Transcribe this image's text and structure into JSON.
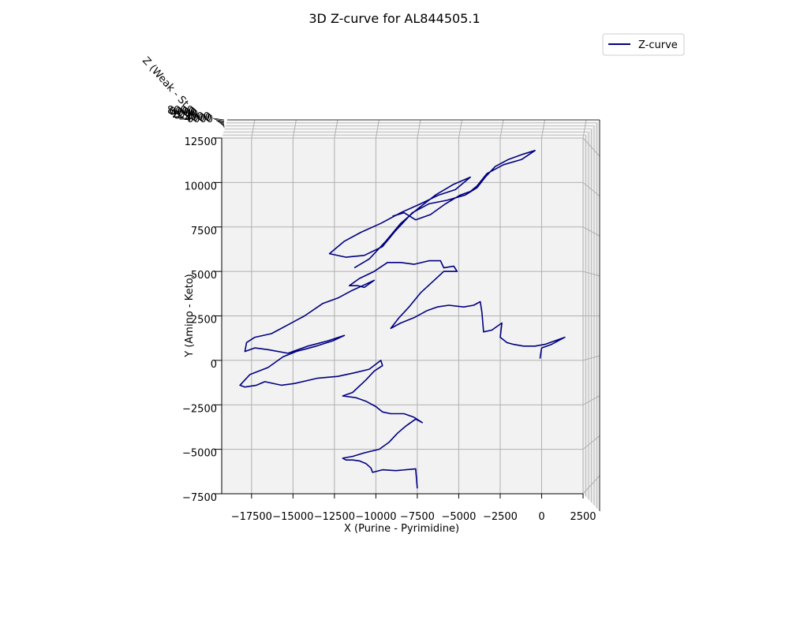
{
  "chart_data": {
    "type": "line",
    "title": "3D Z-curve for AL844505.1",
    "xlabel": "X (Purine - Pyrimidine)",
    "ylabel": "Y (Amino - Keto)",
    "zlabel": "Z (Weak - Strong)",
    "zlabel_visible": "Z (Weak - St",
    "xlim": [
      -19300,
      2500
    ],
    "ylim": [
      -7500,
      12500
    ],
    "x_ticks": [
      "−17500",
      "−15000",
      "−12500",
      "−10000",
      "−7500",
      "−5000",
      "−2500",
      "0",
      "2500"
    ],
    "x_tick_values": [
      -17500,
      -15000,
      -12500,
      -10000,
      -7500,
      -5000,
      -2500,
      0,
      2500
    ],
    "y_ticks": [
      "−7500",
      "−5000",
      "−2500",
      "0",
      "2500",
      "5000",
      "7500",
      "10000",
      "12500"
    ],
    "y_tick_values": [
      -7500,
      -5000,
      -2500,
      0,
      2500,
      5000,
      7500,
      10000,
      12500
    ],
    "z_ticks_overlapping": [
      "8000",
      "6000",
      "4000",
      "2000",
      "0",
      "−2000",
      "−4000",
      "−6000"
    ],
    "grid": true,
    "legend_position": "top-right",
    "line_color": "#000080",
    "pane_color": "#f2f2f2",
    "grid_color": "#b0b0b0",
    "series": [
      {
        "name": "Z-curve",
        "points": [
          [
            -7500,
            -7200
          ],
          [
            -7600,
            -6100
          ],
          [
            -8800,
            -6200
          ],
          [
            -9600,
            -6150
          ],
          [
            -10200,
            -6300
          ],
          [
            -10300,
            -6050
          ],
          [
            -10600,
            -5800
          ],
          [
            -11000,
            -5650
          ],
          [
            -11400,
            -5600
          ],
          [
            -11800,
            -5600
          ],
          [
            -12000,
            -5500
          ],
          [
            -11400,
            -5400
          ],
          [
            -10700,
            -5200
          ],
          [
            -9800,
            -5000
          ],
          [
            -9200,
            -4600
          ],
          [
            -8700,
            -4100
          ],
          [
            -8200,
            -3700
          ],
          [
            -7600,
            -3300
          ],
          [
            -7200,
            -3500
          ],
          [
            -7700,
            -3200
          ],
          [
            -8300,
            -3000
          ],
          [
            -9100,
            -3000
          ],
          [
            -9600,
            -2900
          ],
          [
            -10000,
            -2600
          ],
          [
            -10600,
            -2300
          ],
          [
            -11200,
            -2100
          ],
          [
            -12000,
            -2000
          ],
          [
            -11400,
            -1800
          ],
          [
            -10600,
            -1100
          ],
          [
            -10100,
            -600
          ],
          [
            -9600,
            -300
          ],
          [
            -9700,
            0
          ],
          [
            -10400,
            -500
          ],
          [
            -11300,
            -700
          ],
          [
            -12300,
            -900
          ],
          [
            -13500,
            -1000
          ],
          [
            -14900,
            -1300
          ],
          [
            -15700,
            -1400
          ],
          [
            -16700,
            -1200
          ],
          [
            -17200,
            -1400
          ],
          [
            -17900,
            -1500
          ],
          [
            -18200,
            -1400
          ],
          [
            -17600,
            -800
          ],
          [
            -16500,
            -400
          ],
          [
            -15600,
            200
          ],
          [
            -14800,
            500
          ],
          [
            -13600,
            800
          ],
          [
            -12600,
            1100
          ],
          [
            -11900,
            1400
          ],
          [
            -12900,
            1100
          ],
          [
            -14100,
            800
          ],
          [
            -15300,
            400
          ],
          [
            -16500,
            600
          ],
          [
            -17300,
            700
          ],
          [
            -17900,
            500
          ],
          [
            -17800,
            1000
          ],
          [
            -17300,
            1300
          ],
          [
            -16300,
            1500
          ],
          [
            -15300,
            2000
          ],
          [
            -14300,
            2500
          ],
          [
            -13200,
            3200
          ],
          [
            -12300,
            3500
          ],
          [
            -11500,
            3900
          ],
          [
            -10800,
            4200
          ],
          [
            -10100,
            4500
          ],
          [
            -10700,
            4100
          ],
          [
            -11100,
            4200
          ],
          [
            -11600,
            4200
          ],
          [
            -11000,
            4600
          ],
          [
            -10100,
            5000
          ],
          [
            -9300,
            5500
          ],
          [
            -8500,
            5500
          ],
          [
            -7700,
            5400
          ],
          [
            -6800,
            5600
          ],
          [
            -6100,
            5600
          ],
          [
            -5900,
            5200
          ],
          [
            -5300,
            5300
          ],
          [
            -5100,
            5000
          ],
          [
            -5900,
            5000
          ],
          [
            -6600,
            4400
          ],
          [
            -7300,
            3800
          ],
          [
            -8000,
            3000
          ],
          [
            -8600,
            2400
          ],
          [
            -9100,
            1800
          ],
          [
            -8500,
            2100
          ],
          [
            -7700,
            2400
          ],
          [
            -6900,
            2800
          ],
          [
            -6300,
            3000
          ],
          [
            -5600,
            3100
          ],
          [
            -4700,
            3000
          ],
          [
            -4100,
            3100
          ],
          [
            -3700,
            3300
          ],
          [
            -3600,
            2700
          ],
          [
            -3500,
            1600
          ],
          [
            -3000,
            1700
          ],
          [
            -2400,
            2100
          ],
          [
            -2500,
            1300
          ],
          [
            -2100,
            1000
          ],
          [
            -1700,
            900
          ],
          [
            -1100,
            800
          ],
          [
            -400,
            800
          ],
          [
            200,
            900
          ],
          [
            800,
            1100
          ],
          [
            1400,
            1300
          ],
          [
            600,
            900
          ],
          [
            0,
            700
          ],
          [
            -100,
            100
          ]
        ]
      },
      {
        "name": "",
        "points": [
          [
            -11300,
            5200
          ],
          [
            -10400,
            5700
          ],
          [
            -9400,
            6700
          ],
          [
            -8500,
            7700
          ],
          [
            -7500,
            8500
          ],
          [
            -6400,
            9300
          ],
          [
            -5300,
            9900
          ],
          [
            -4300,
            10300
          ],
          [
            -5200,
            9600
          ],
          [
            -6200,
            9300
          ],
          [
            -7300,
            8800
          ],
          [
            -8500,
            8300
          ],
          [
            -9700,
            7700
          ],
          [
            -10900,
            7200
          ],
          [
            -11900,
            6700
          ],
          [
            -12800,
            6000
          ],
          [
            -11800,
            5800
          ],
          [
            -10700,
            5900
          ],
          [
            -9600,
            6400
          ],
          [
            -8800,
            7300
          ],
          [
            -7800,
            8300
          ],
          [
            -6800,
            8800
          ],
          [
            -5700,
            9000
          ],
          [
            -4600,
            9300
          ],
          [
            -3900,
            9700
          ],
          [
            -3400,
            10300
          ],
          [
            -2800,
            10900
          ],
          [
            -2000,
            11300
          ],
          [
            -1100,
            11600
          ],
          [
            -400,
            11800
          ],
          [
            -1200,
            11300
          ],
          [
            -2300,
            11000
          ],
          [
            -3300,
            10500
          ],
          [
            -3900,
            9800
          ],
          [
            -4300,
            9500
          ],
          [
            -4900,
            9300
          ],
          [
            -5800,
            8800
          ],
          [
            -6700,
            8200
          ],
          [
            -7600,
            7900
          ],
          [
            -8300,
            8300
          ],
          [
            -9000,
            8100
          ]
        ]
      }
    ]
  }
}
